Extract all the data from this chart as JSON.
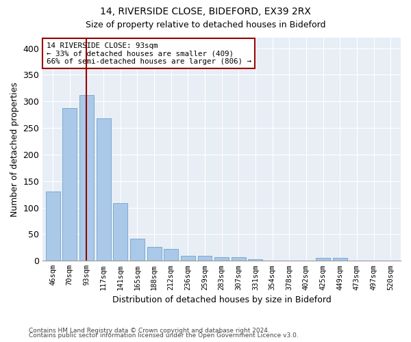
{
  "title1": "14, RIVERSIDE CLOSE, BIDEFORD, EX39 2RX",
  "title2": "Size of property relative to detached houses in Bideford",
  "xlabel": "Distribution of detached houses by size in Bideford",
  "ylabel": "Number of detached properties",
  "categories": [
    "46sqm",
    "70sqm",
    "93sqm",
    "117sqm",
    "141sqm",
    "165sqm",
    "188sqm",
    "212sqm",
    "236sqm",
    "259sqm",
    "283sqm",
    "307sqm",
    "331sqm",
    "354sqm",
    "378sqm",
    "402sqm",
    "425sqm",
    "449sqm",
    "473sqm",
    "497sqm",
    "520sqm"
  ],
  "values": [
    130,
    288,
    312,
    268,
    108,
    42,
    26,
    22,
    10,
    10,
    7,
    7,
    3,
    0,
    0,
    0,
    5,
    5,
    0,
    0,
    0
  ],
  "bar_color": "#aac8e8",
  "bar_edge_color": "#7aaad0",
  "highlight_bar_index": 2,
  "vline_color": "#990000",
  "annotation_line1": "14 RIVERSIDE CLOSE: 93sqm",
  "annotation_line2": "← 33% of detached houses are smaller (409)",
  "annotation_line3": "66% of semi-detached houses are larger (806) →",
  "annotation_box_color": "#ffffff",
  "annotation_box_edge": "#990000",
  "ylim": [
    0,
    420
  ],
  "yticks": [
    0,
    50,
    100,
    150,
    200,
    250,
    300,
    350,
    400
  ],
  "footer1": "Contains HM Land Registry data © Crown copyright and database right 2024.",
  "footer2": "Contains public sector information licensed under the Open Government Licence v3.0.",
  "bg_color": "#ffffff",
  "plot_bg_color": "#e8eef5"
}
